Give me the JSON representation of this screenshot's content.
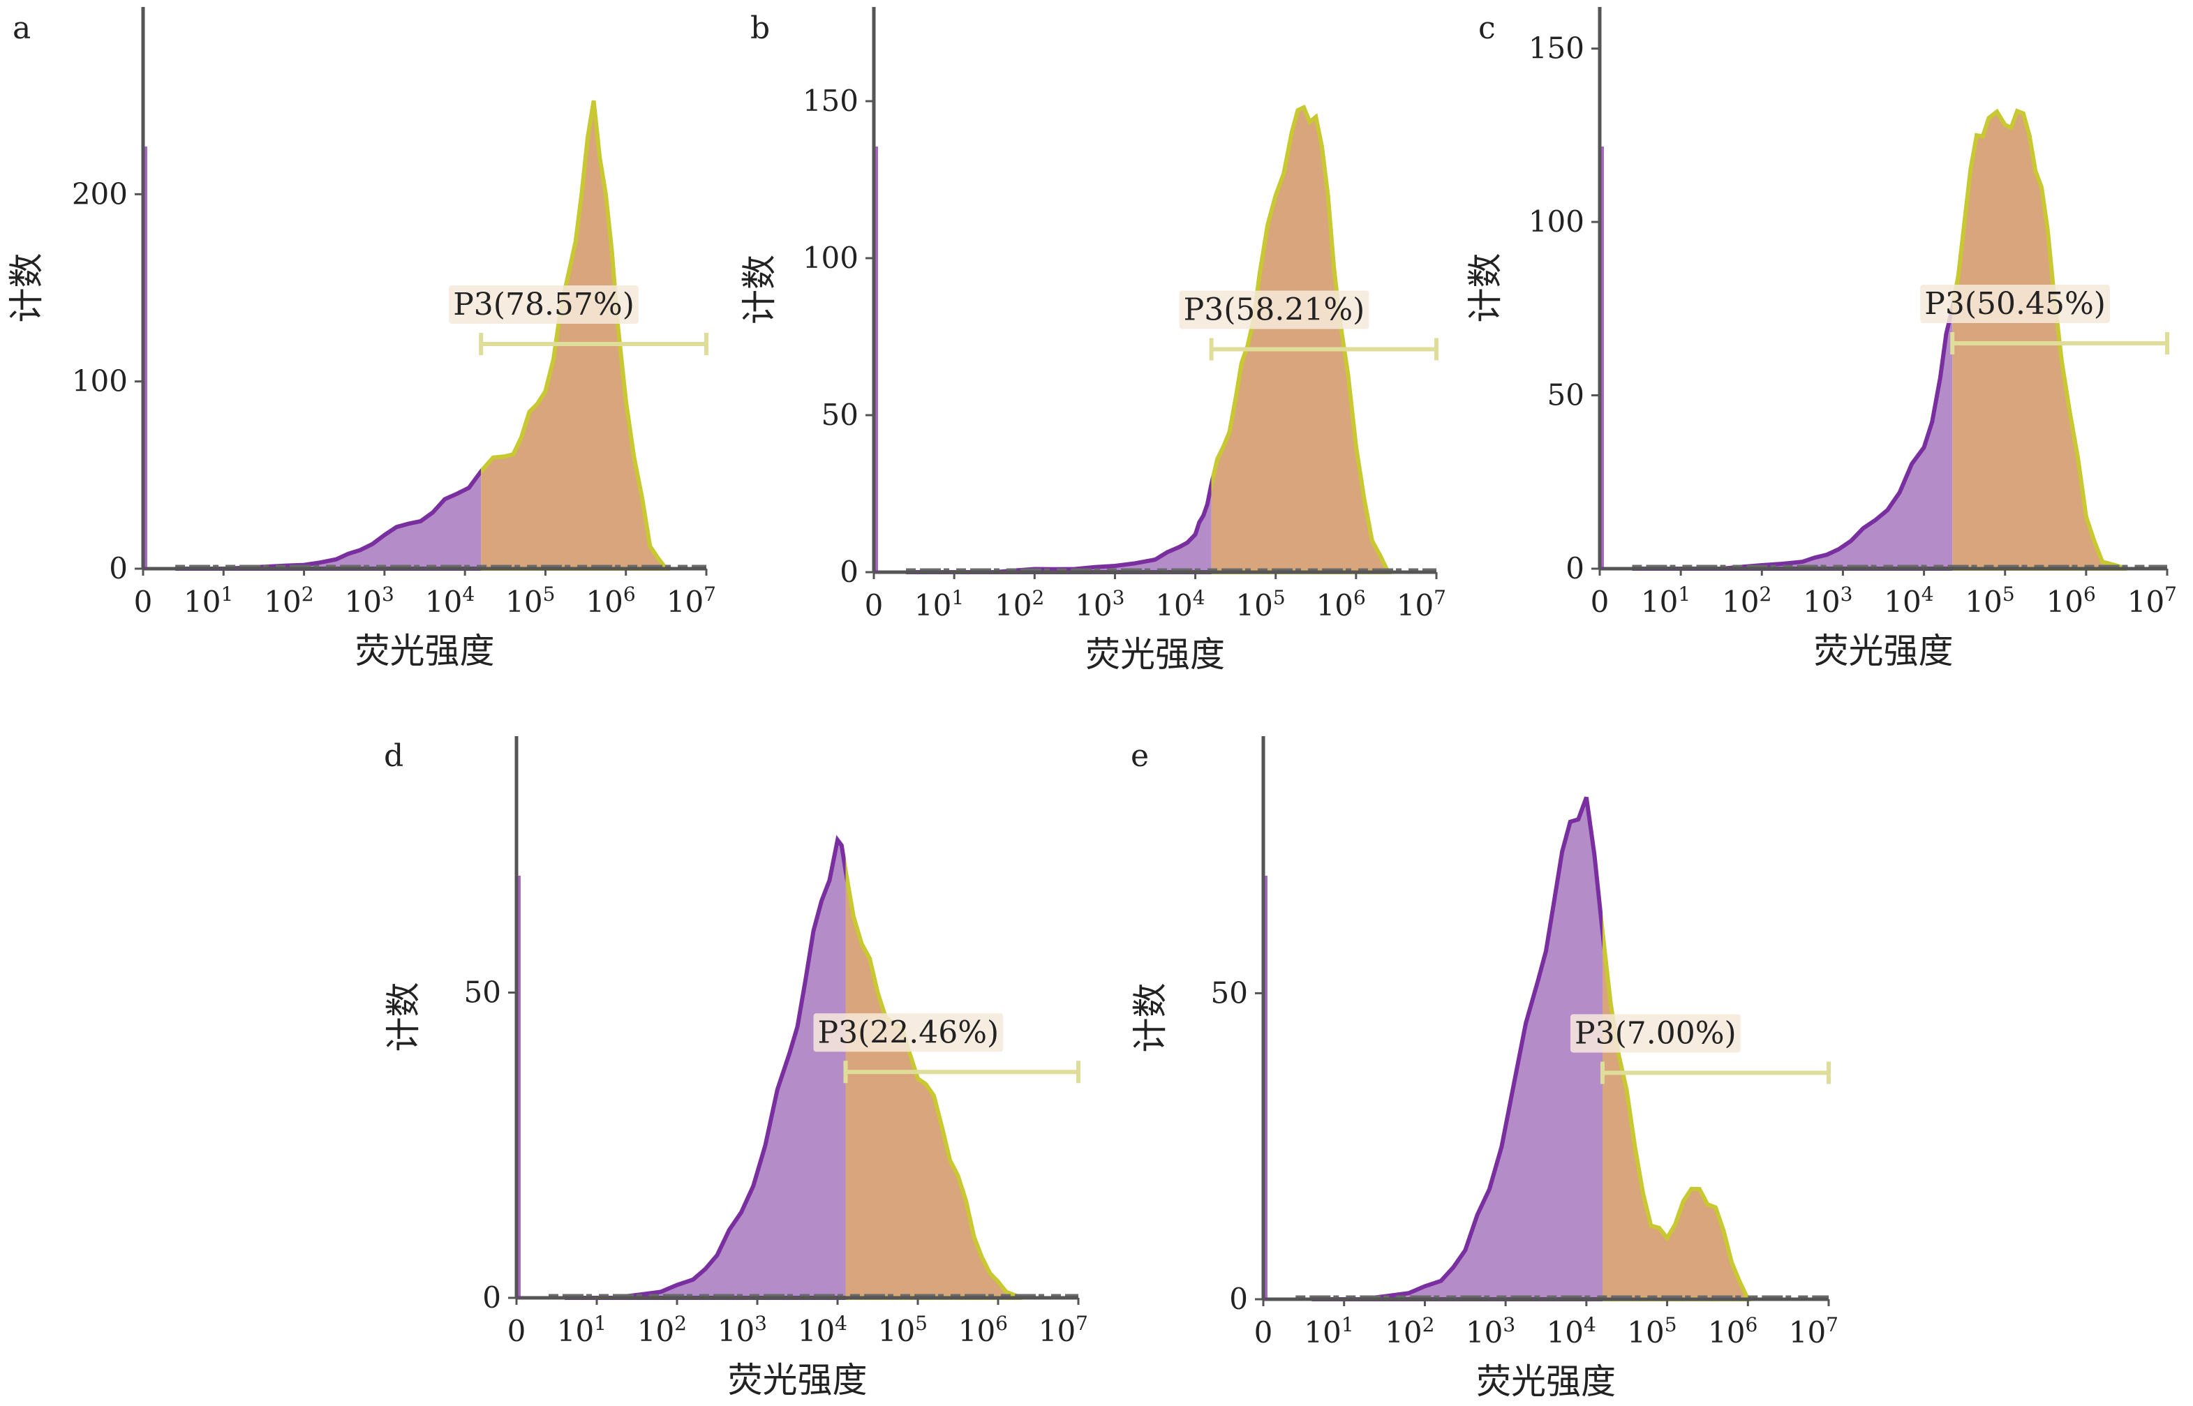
{
  "colors": {
    "ungated_fill": "#b48cc8",
    "ungated_edge": "#7a2fa0",
    "gated_fill": "#d9a57c",
    "gated_edge": "#c8c832",
    "gate_bar": "#dede9a"
  },
  "chart_data": [
    {
      "type": "area",
      "panel": "a",
      "xlabel": "荧光强度",
      "ylabel": "计数",
      "x_scale": "log",
      "x_ticks": [
        {
          "base": "0",
          "exp": ""
        },
        {
          "base": "10",
          "exp": "1"
        },
        {
          "base": "10",
          "exp": "2"
        },
        {
          "base": "10",
          "exp": "3"
        },
        {
          "base": "10",
          "exp": "4"
        },
        {
          "base": "10",
          "exp": "5"
        },
        {
          "base": "10",
          "exp": "6"
        },
        {
          "base": "10",
          "exp": "7"
        }
      ],
      "y_ticks": [
        0,
        100,
        200
      ],
      "ylim": [
        0,
        300
      ],
      "gate": {
        "label": "P3(78.57%)",
        "start_decade": 4.2,
        "end_decade": 7.0,
        "level": 120
      },
      "series": [
        {
          "x": [
            0.4,
            1.0,
            1.5,
            2.0,
            2.4,
            2.7,
            3.0,
            3.3,
            3.6,
            3.9,
            4.2,
            4.5,
            4.7,
            4.9,
            5.1,
            5.3,
            5.45,
            5.6,
            5.75,
            5.9,
            6.1,
            6.3,
            6.5
          ],
          "y": [
            0,
            0,
            1,
            2,
            5,
            10,
            18,
            24,
            30,
            40,
            52,
            60,
            70,
            88,
            112,
            160,
            200,
            250,
            200,
            130,
            60,
            12,
            0
          ]
        }
      ]
    },
    {
      "type": "area",
      "panel": "b",
      "xlabel": "荧光强度",
      "ylabel": "计数",
      "x_scale": "log",
      "x_ticks": [
        {
          "base": "0",
          "exp": ""
        },
        {
          "base": "10",
          "exp": "1"
        },
        {
          "base": "10",
          "exp": "2"
        },
        {
          "base": "10",
          "exp": "3"
        },
        {
          "base": "10",
          "exp": "4"
        },
        {
          "base": "10",
          "exp": "5"
        },
        {
          "base": "10",
          "exp": "6"
        },
        {
          "base": "10",
          "exp": "7"
        }
      ],
      "y_ticks": [
        0,
        50,
        100,
        150
      ],
      "ylim": [
        0,
        180
      ],
      "gate": {
        "label": "P3(58.21%)",
        "start_decade": 4.2,
        "end_decade": 7.0,
        "level": 71
      },
      "series": [
        {
          "x": [
            0.4,
            1.0,
            1.5,
            2.0,
            2.5,
            3.0,
            3.5,
            3.8,
            4.0,
            4.1,
            4.2,
            4.35,
            4.5,
            4.65,
            4.8,
            5.0,
            5.2,
            5.35,
            5.5,
            5.65,
            5.8,
            6.0,
            6.2,
            6.4
          ],
          "y": [
            0,
            0,
            0,
            1,
            1,
            2,
            4,
            8,
            12,
            18,
            28,
            40,
            55,
            72,
            95,
            120,
            140,
            148,
            145,
            120,
            80,
            40,
            10,
            0
          ]
        }
      ]
    },
    {
      "type": "area",
      "panel": "c",
      "xlabel": "荧光强度",
      "ylabel": "计数",
      "x_scale": "log",
      "x_ticks": [
        {
          "base": "0",
          "exp": ""
        },
        {
          "base": "10",
          "exp": "1"
        },
        {
          "base": "10",
          "exp": "2"
        },
        {
          "base": "10",
          "exp": "3"
        },
        {
          "base": "10",
          "exp": "4"
        },
        {
          "base": "10",
          "exp": "5"
        },
        {
          "base": "10",
          "exp": "6"
        },
        {
          "base": "10",
          "exp": "7"
        }
      ],
      "y_ticks": [
        0,
        50,
        100,
        150
      ],
      "ylim": [
        0,
        162
      ],
      "gate": {
        "label": "P3(50.45%)",
        "start_decade": 4.35,
        "end_decade": 7.0,
        "level": 65
      },
      "series": [
        {
          "x": [
            0.4,
            1.0,
            1.5,
            2.0,
            2.5,
            2.8,
            3.1,
            3.4,
            3.7,
            4.0,
            4.2,
            4.35,
            4.5,
            4.65,
            4.8,
            5.0,
            5.15,
            5.3,
            5.45,
            5.6,
            5.8,
            6.0,
            6.2,
            6.5
          ],
          "y": [
            0,
            0,
            0,
            1,
            2,
            4,
            8,
            14,
            22,
            35,
            55,
            75,
            100,
            125,
            130,
            128,
            132,
            125,
            110,
            80,
            45,
            15,
            2,
            0
          ]
        }
      ]
    },
    {
      "type": "area",
      "panel": "d",
      "xlabel": "荧光强度",
      "ylabel": "计数",
      "x_scale": "log",
      "x_ticks": [
        {
          "base": "0",
          "exp": ""
        },
        {
          "base": "10",
          "exp": "1"
        },
        {
          "base": "10",
          "exp": "2"
        },
        {
          "base": "10",
          "exp": "3"
        },
        {
          "base": "10",
          "exp": "4"
        },
        {
          "base": "10",
          "exp": "5"
        },
        {
          "base": "10",
          "exp": "6"
        },
        {
          "base": "10",
          "exp": "7"
        }
      ],
      "y_ticks": [
        0,
        50
      ],
      "ylim": [
        0,
        92
      ],
      "gate": {
        "label": "P3(22.46%)",
        "start_decade": 4.1,
        "end_decade": 7.0,
        "level": 37
      },
      "series": [
        {
          "x": [
            0.6,
            1.2,
            1.8,
            2.2,
            2.5,
            2.8,
            3.1,
            3.4,
            3.6,
            3.8,
            4.0,
            4.1,
            4.3,
            4.5,
            4.7,
            4.9,
            5.1,
            5.3,
            5.5,
            5.7,
            5.9,
            6.1,
            6.3
          ],
          "y": [
            0,
            0,
            1,
            3,
            7,
            14,
            25,
            40,
            52,
            65,
            75,
            70,
            58,
            50,
            45,
            40,
            35,
            28,
            20,
            10,
            4,
            1,
            0
          ]
        }
      ]
    },
    {
      "type": "area",
      "panel": "e",
      "xlabel": "荧光强度",
      "ylabel": "计数",
      "x_scale": "log",
      "x_ticks": [
        {
          "base": "0",
          "exp": ""
        },
        {
          "base": "10",
          "exp": "1"
        },
        {
          "base": "10",
          "exp": "2"
        },
        {
          "base": "10",
          "exp": "3"
        },
        {
          "base": "10",
          "exp": "4"
        },
        {
          "base": "10",
          "exp": "5"
        },
        {
          "base": "10",
          "exp": "6"
        },
        {
          "base": "10",
          "exp": "7"
        }
      ],
      "y_ticks": [
        0,
        50
      ],
      "ylim": [
        0,
        92
      ],
      "gate": {
        "label": "P3(7.00%)",
        "start_decade": 4.2,
        "end_decade": 7.0,
        "level": 37
      },
      "series": [
        {
          "x": [
            0.6,
            1.2,
            1.8,
            2.2,
            2.5,
            2.8,
            3.1,
            3.4,
            3.6,
            3.8,
            4.0,
            4.2,
            4.4,
            4.6,
            4.8,
            5.0,
            5.2,
            5.4,
            5.6,
            5.8,
            6.0
          ],
          "y": [
            0,
            0,
            1,
            3,
            8,
            18,
            35,
            52,
            65,
            78,
            82,
            60,
            40,
            25,
            12,
            10,
            16,
            18,
            15,
            6,
            0
          ]
        }
      ]
    }
  ]
}
